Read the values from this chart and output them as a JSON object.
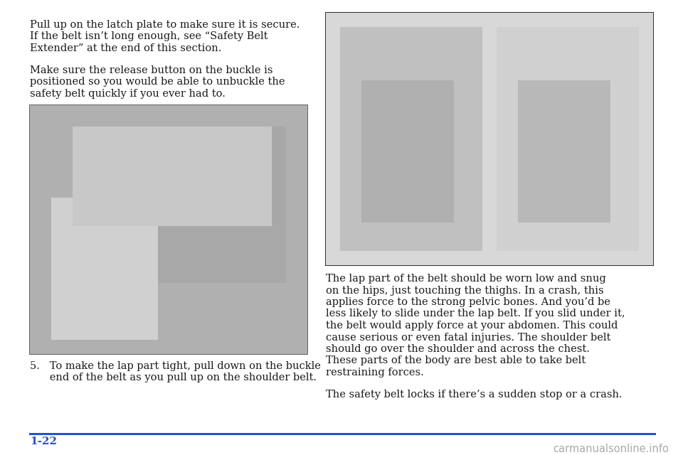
{
  "bg_color": "#ffffff",
  "text_color": "#1a1a1a",
  "blue_color": "#2255cc",
  "page_number": "1-22",
  "watermark": "carmanualsonline.info",
  "para1_line1": "Pull up on the latch plate to make sure it is secure.",
  "para1_line2": "If the belt isn’t long enough, see “Safety Belt",
  "para1_line3": "Extender” at the end of this section.",
  "para2_line1": "Make sure the release button on the buckle is",
  "para2_line2": "positioned so you would be able to unbuckle the",
  "para2_line3": "safety belt quickly if you ever had to.",
  "step5_line1": "5.   To make the lap part tight, pull down on the buckle",
  "step5_line2": "      end of the belt as you pull up on the shoulder belt.",
  "right_para1_lines": [
    "The lap part of the belt should be worn low and snug",
    "on the hips, just touching the thighs. In a crash, this",
    "applies force to the strong pelvic bones. And you’d be",
    "less likely to slide under the lap belt. If you slid under it,",
    "the belt would apply force at your abdomen. This could",
    "cause serious or even fatal injuries. The shoulder belt",
    "should go over the shoulder and across the chest.",
    "These parts of the body are best able to take belt",
    "restraining forces."
  ],
  "right_para2": "The safety belt locks if there’s a sudden stop or a crash.",
  "font_size_body": 10.5,
  "font_size_page": 11,
  "font_size_watermark": 10.5
}
